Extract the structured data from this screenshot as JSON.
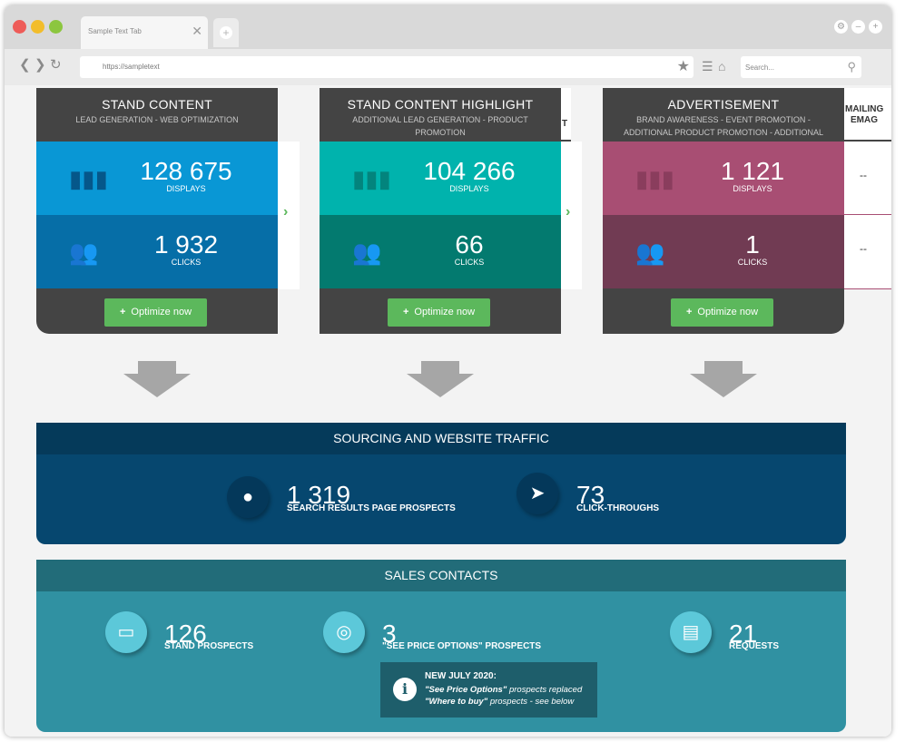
{
  "browser": {
    "tab_title": "Sample Text Tab",
    "tab_close": "✕",
    "new_tab": "+",
    "url": "https://sampletext",
    "search_placeholder": "Search...",
    "nav_back": "❮",
    "nav_forward": "❯",
    "nav_reload": "↻"
  },
  "cards": [
    {
      "title": "STAND CONTENT",
      "subtitle": "LEAD GENERATION - WEB OPTIMIZATION",
      "displays_value": "128 675",
      "displays_label": "DISPLAYS",
      "clicks_value": "1 932",
      "clicks_label": "CLICKS",
      "button": "Optimize now",
      "colors": {
        "top": "#0997d5",
        "bottom": "#066ea7",
        "icon": "#05578a"
      }
    },
    {
      "title": "STAND CONTENT HIGHLIGHT",
      "subtitle": "ADDITIONAL LEAD GENERATION - PRODUCT PROMOTION",
      "displays_value": "104 266",
      "displays_label": "DISPLAYS",
      "clicks_value": "66",
      "clicks_label": "CLICKS",
      "button": "Optimize now",
      "colors": {
        "top": "#00b3ad",
        "bottom": "#037a6f",
        "icon": "#03847d"
      }
    },
    {
      "title": "ADVERTISEMENT",
      "subtitle": "BRAND AWARENESS - EVENT PROMOTION - ADDITIONAL PRODUCT PROMOTION - ADDITIONAL LEAD GENERATION",
      "displays_value": "1 121",
      "displays_label": "DISPLAYS",
      "clicks_value": "1",
      "clicks_label": "CLICKS",
      "button": "Optimize now",
      "colors": {
        "top": "#a84e73",
        "bottom": "#713b53",
        "icon": "#8a3d5d"
      }
    }
  ],
  "partial_column": {
    "header_line1": "MAILING",
    "header_line2": "EMAG",
    "value1": "--",
    "value2": "--",
    "clipped_header_char": "T"
  },
  "traffic": {
    "title": "SOURCING AND WEBSITE TRAFFIC",
    "prospects_value": "1 319",
    "prospects_label": "SEARCH RESULTS PAGE PROSPECTS",
    "clicks_value": "73",
    "clicks_label": "CLICK-THROUGHS"
  },
  "sales": {
    "title": "SALES CONTACTS",
    "stand_value": "126",
    "stand_label": "STAND PROSPECTS",
    "price_value": "3",
    "price_label": "\"SEE PRICE OPTIONS\" PROSPECTS",
    "requests_value": "21",
    "requests_label": "REQUESTS",
    "notice_title": "NEW JULY 2020:",
    "notice_line1_bold": "\"See Price Options\"",
    "notice_line1_rest": " prospects replaced",
    "notice_line2_bold": "\"Where to buy\"",
    "notice_line2_rest": " prospects - see below"
  }
}
